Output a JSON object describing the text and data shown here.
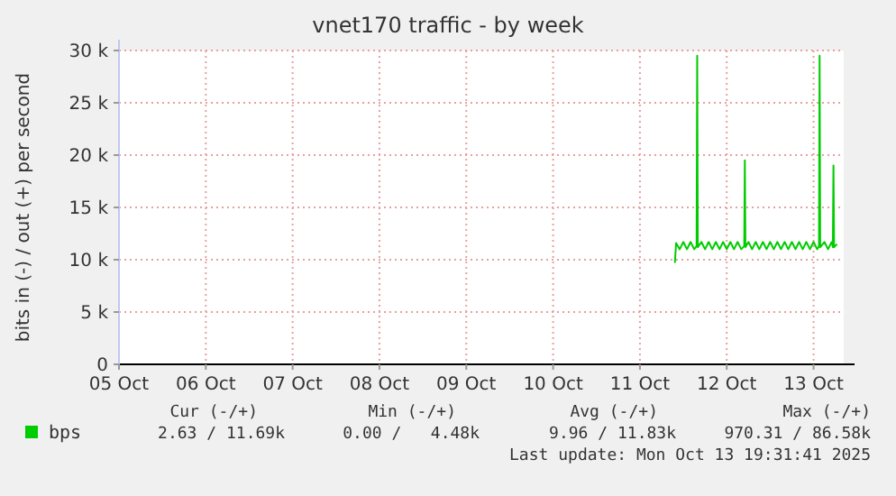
{
  "chart_data": {
    "type": "line",
    "title": "vnet170 traffic - by week",
    "ylabel": "bits in (-) / out (+) per second",
    "xlim": [
      "2025-10-05",
      "2025-10-13T08:20"
    ],
    "xticks": [
      {
        "value": "2025-10-05",
        "label": "05 Oct"
      },
      {
        "value": "2025-10-06",
        "label": "06 Oct"
      },
      {
        "value": "2025-10-07",
        "label": "07 Oct"
      },
      {
        "value": "2025-10-08",
        "label": "08 Oct"
      },
      {
        "value": "2025-10-09",
        "label": "09 Oct"
      },
      {
        "value": "2025-10-10",
        "label": "10 Oct"
      },
      {
        "value": "2025-10-11",
        "label": "11 Oct"
      },
      {
        "value": "2025-10-12",
        "label": "12 Oct"
      },
      {
        "value": "2025-10-13",
        "label": "13 Oct"
      }
    ],
    "ylim": [
      0,
      30000
    ],
    "yticks": [
      {
        "value": 0,
        "label": "0"
      },
      {
        "value": 5000,
        "label": "5 k"
      },
      {
        "value": 10000,
        "label": "10 k"
      },
      {
        "value": 15000,
        "label": "15 k"
      },
      {
        "value": 20000,
        "label": "20 k"
      },
      {
        "value": 25000,
        "label": "25 k"
      },
      {
        "value": 30000,
        "label": "30 k"
      }
    ],
    "grid": true,
    "legend": "bottom",
    "series": [
      {
        "name": "bps",
        "color": "#00cc00",
        "x": [
          "2025-10-11T09:40",
          "2025-10-11T10:00",
          "2025-10-11T11:00",
          "2025-10-11T12:00",
          "2025-10-11T13:00",
          "2025-10-11T14:00",
          "2025-10-11T15:00",
          "2025-10-11T15:40",
          "2025-10-11T15:50",
          "2025-10-11T16:00",
          "2025-10-11T17:00",
          "2025-10-11T18:00",
          "2025-10-11T19:00",
          "2025-10-11T20:00",
          "2025-10-11T21:00",
          "2025-10-11T22:00",
          "2025-10-11T23:00",
          "2025-10-12T00:00",
          "2025-10-12T01:00",
          "2025-10-12T02:00",
          "2025-10-12T03:00",
          "2025-10-12T04:00",
          "2025-10-12T04:50",
          "2025-10-12T05:00",
          "2025-10-12T05:10",
          "2025-10-12T06:00",
          "2025-10-12T07:00",
          "2025-10-12T08:00",
          "2025-10-12T09:00",
          "2025-10-12T10:00",
          "2025-10-12T11:00",
          "2025-10-12T12:00",
          "2025-10-12T13:00",
          "2025-10-12T14:00",
          "2025-10-12T15:00",
          "2025-10-12T16:00",
          "2025-10-12T17:00",
          "2025-10-12T18:00",
          "2025-10-12T19:00",
          "2025-10-12T20:00",
          "2025-10-12T21:00",
          "2025-10-12T22:00",
          "2025-10-12T23:00",
          "2025-10-13T00:00",
          "2025-10-13T01:00",
          "2025-10-13T01:30",
          "2025-10-13T01:40",
          "2025-10-13T01:50",
          "2025-10-13T03:00",
          "2025-10-13T04:00",
          "2025-10-13T05:00",
          "2025-10-13T05:20",
          "2025-10-13T05:30",
          "2025-10-13T05:40",
          "2025-10-13T06:30"
        ],
        "values": [
          9700,
          11600,
          11000,
          11700,
          11000,
          11700,
          11000,
          11300,
          29500,
          11200,
          11700,
          11000,
          11700,
          11000,
          11700,
          11000,
          11700,
          11000,
          11700,
          11000,
          11700,
          11000,
          11300,
          19500,
          11200,
          11700,
          11000,
          11700,
          11000,
          11700,
          11000,
          11700,
          11000,
          11700,
          11000,
          11700,
          11000,
          11700,
          11000,
          11700,
          11000,
          11700,
          11000,
          11700,
          11000,
          11300,
          29500,
          11200,
          11700,
          11000,
          11700,
          11200,
          19000,
          11200,
          11500
        ]
      }
    ],
    "annotations": [
      "Cur (-/+)",
      "Min (-/+)",
      "Avg (-/+)",
      "Max (-/+)",
      "2.63 / 11.69k",
      "0.00 /   4.48k",
      "9.96 / 11.83k",
      "970.31 / 86.58k",
      "Last update: Mon Oct 13 19:31:41 2025"
    ]
  }
}
